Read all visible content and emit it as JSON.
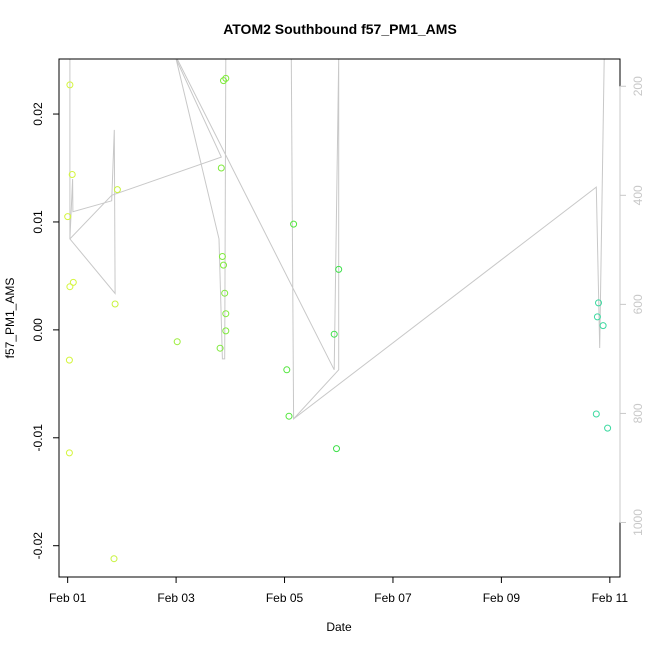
{
  "chart_data": {
    "type": "scatter",
    "title": "ATOM2 Southbound f57_PM1_AMS",
    "xlabel": "Date",
    "ylabel": "f57_PM1_AMS",
    "xlim": [
      "2019-01-31T20:10",
      "2019-02-11T04:30"
    ],
    "ylim": [
      -0.0229,
      0.0251
    ],
    "x_ticks": [
      {
        "date": "2019-02-01",
        "label": "Feb 01"
      },
      {
        "date": "2019-02-03",
        "label": "Feb 03"
      },
      {
        "date": "2019-02-05",
        "label": "Feb 05"
      },
      {
        "date": "2019-02-07",
        "label": "Feb 07"
      },
      {
        "date": "2019-02-09",
        "label": "Feb 09"
      },
      {
        "date": "2019-02-11",
        "label": "Feb 11"
      }
    ],
    "y_ticks": [
      {
        "value": -0.02,
        "label": "-0.02"
      },
      {
        "value": -0.01,
        "label": "-0.01"
      },
      {
        "value": 0.0,
        "label": "0.00"
      },
      {
        "value": 0.01,
        "label": "0.01"
      },
      {
        "value": 0.02,
        "label": "0.02"
      }
    ],
    "right_axis": {
      "lim": [
        1100,
        150
      ],
      "ticks": [
        {
          "value": 200,
          "label": "200"
        },
        {
          "value": 400,
          "label": "400"
        },
        {
          "value": 600,
          "label": "600"
        },
        {
          "value": 800,
          "label": "800"
        },
        {
          "value": 1000,
          "label": "1000"
        }
      ],
      "color": "#c8c8c8"
    },
    "points": [
      {
        "x": "2019-02-01T00:00",
        "y": 0.0105,
        "color": "#d4f53c"
      },
      {
        "x": "2019-02-01T01:00",
        "y": 0.0227,
        "color": "#d4f53c"
      },
      {
        "x": "2019-02-01T02:00",
        "y": 0.0144,
        "color": "#d4f53c"
      },
      {
        "x": "2019-02-01T01:00",
        "y": 0.004,
        "color": "#d4f53c"
      },
      {
        "x": "2019-02-01T02:30",
        "y": 0.0044,
        "color": "#d4f53c"
      },
      {
        "x": "2019-02-01T00:45",
        "y": -0.0028,
        "color": "#d4f53c"
      },
      {
        "x": "2019-02-01T00:45",
        "y": -0.0114,
        "color": "#d4f53c"
      },
      {
        "x": "2019-02-01T21:00",
        "y": 0.0024,
        "color": "#c7f33c"
      },
      {
        "x": "2019-02-01T22:00",
        "y": 0.013,
        "color": "#c7f33c"
      },
      {
        "x": "2019-02-01T20:30",
        "y": -0.0212,
        "color": "#c7f33c"
      },
      {
        "x": "2019-02-03T00:30",
        "y": -0.0011,
        "color": "#9cee3c"
      },
      {
        "x": "2019-02-03T20:00",
        "y": 0.015,
        "color": "#7fea3c"
      },
      {
        "x": "2019-02-03T20:30",
        "y": 0.0068,
        "color": "#7fea3c"
      },
      {
        "x": "2019-02-03T21:00",
        "y": 0.006,
        "color": "#7fea3c"
      },
      {
        "x": "2019-02-03T21:30",
        "y": 0.0034,
        "color": "#7fea3c"
      },
      {
        "x": "2019-02-03T22:00",
        "y": 0.0015,
        "color": "#7fea3c"
      },
      {
        "x": "2019-02-03T22:00",
        "y": -0.0001,
        "color": "#7fea3c"
      },
      {
        "x": "2019-02-03T19:30",
        "y": -0.0017,
        "color": "#7fea3c"
      },
      {
        "x": "2019-02-03T21:00",
        "y": 0.0231,
        "color": "#7fea3c"
      },
      {
        "x": "2019-02-03T22:00",
        "y": 0.0233,
        "color": "#7fea3c"
      },
      {
        "x": "2019-02-05T01:00",
        "y": -0.0037,
        "color": "#52e63c"
      },
      {
        "x": "2019-02-05T02:00",
        "y": -0.008,
        "color": "#52e63c"
      },
      {
        "x": "2019-02-05T04:00",
        "y": 0.0098,
        "color": "#52e63c"
      },
      {
        "x": "2019-02-05T22:00",
        "y": -0.0004,
        "color": "#3ee04a"
      },
      {
        "x": "2019-02-06T00:00",
        "y": 0.0056,
        "color": "#3ee04a"
      },
      {
        "x": "2019-02-05T23:00",
        "y": -0.011,
        "color": "#3ee04a"
      },
      {
        "x": "2019-02-10T19:00",
        "y": 0.0025,
        "color": "#3cd9a0"
      },
      {
        "x": "2019-02-10T18:30",
        "y": 0.0012,
        "color": "#3cd9a0"
      },
      {
        "x": "2019-02-10T21:00",
        "y": 0.0004,
        "color": "#3cd9a0"
      },
      {
        "x": "2019-02-10T18:00",
        "y": -0.0078,
        "color": "#3cd9a0"
      },
      {
        "x": "2019-02-10T23:00",
        "y": -0.0091,
        "color": "#3cd9a0"
      }
    ],
    "line_series": {
      "axis": "right",
      "color": "#c8c8c8",
      "points": [
        {
          "x": "2019-02-01T01:00",
          "y": 130
        },
        {
          "x": "2019-02-01T01:00",
          "y": 480
        },
        {
          "x": "2019-02-01T01:40",
          "y": 420
        },
        {
          "x": "2019-02-01T02:10",
          "y": 370
        },
        {
          "x": "2019-02-01T02:20",
          "y": 430
        },
        {
          "x": "2019-02-01T19:30",
          "y": 410
        },
        {
          "x": "2019-02-01T20:40",
          "y": 280
        },
        {
          "x": "2019-02-01T21:00",
          "y": 580
        },
        {
          "x": "2019-02-01T01:00",
          "y": 480
        },
        {
          "x": "2019-02-01T01:00",
          "y": 480
        },
        {
          "x": "2019-02-01T19:30",
          "y": 400
        },
        {
          "x": "2019-02-03T20:00",
          "y": 330
        },
        {
          "x": "2019-02-03T00:00",
          "y": 130
        },
        {
          "x": "2019-02-03T19:00",
          "y": 480
        },
        {
          "x": "2019-02-03T20:30",
          "y": 700
        },
        {
          "x": "2019-02-03T21:30",
          "y": 700
        },
        {
          "x": "2019-02-03T22:00",
          "y": 130
        },
        {
          "x": "2019-02-03T00:30",
          "y": 130
        },
        {
          "x": "2019-02-05T22:00",
          "y": 720
        },
        {
          "x": "2019-02-06T00:00",
          "y": 130
        },
        {
          "x": "2019-02-06T00:00",
          "y": 720
        },
        {
          "x": "2019-02-05T04:00",
          "y": 810
        },
        {
          "x": "2019-02-05T03:00",
          "y": 130
        },
        {
          "x": "2019-02-05T04:00",
          "y": 810
        },
        {
          "x": "2019-02-10T18:00",
          "y": 385
        },
        {
          "x": "2019-02-10T19:30",
          "y": 680
        },
        {
          "x": "2019-02-10T21:30",
          "y": 130
        }
      ]
    },
    "grid": false,
    "legend": "none"
  }
}
